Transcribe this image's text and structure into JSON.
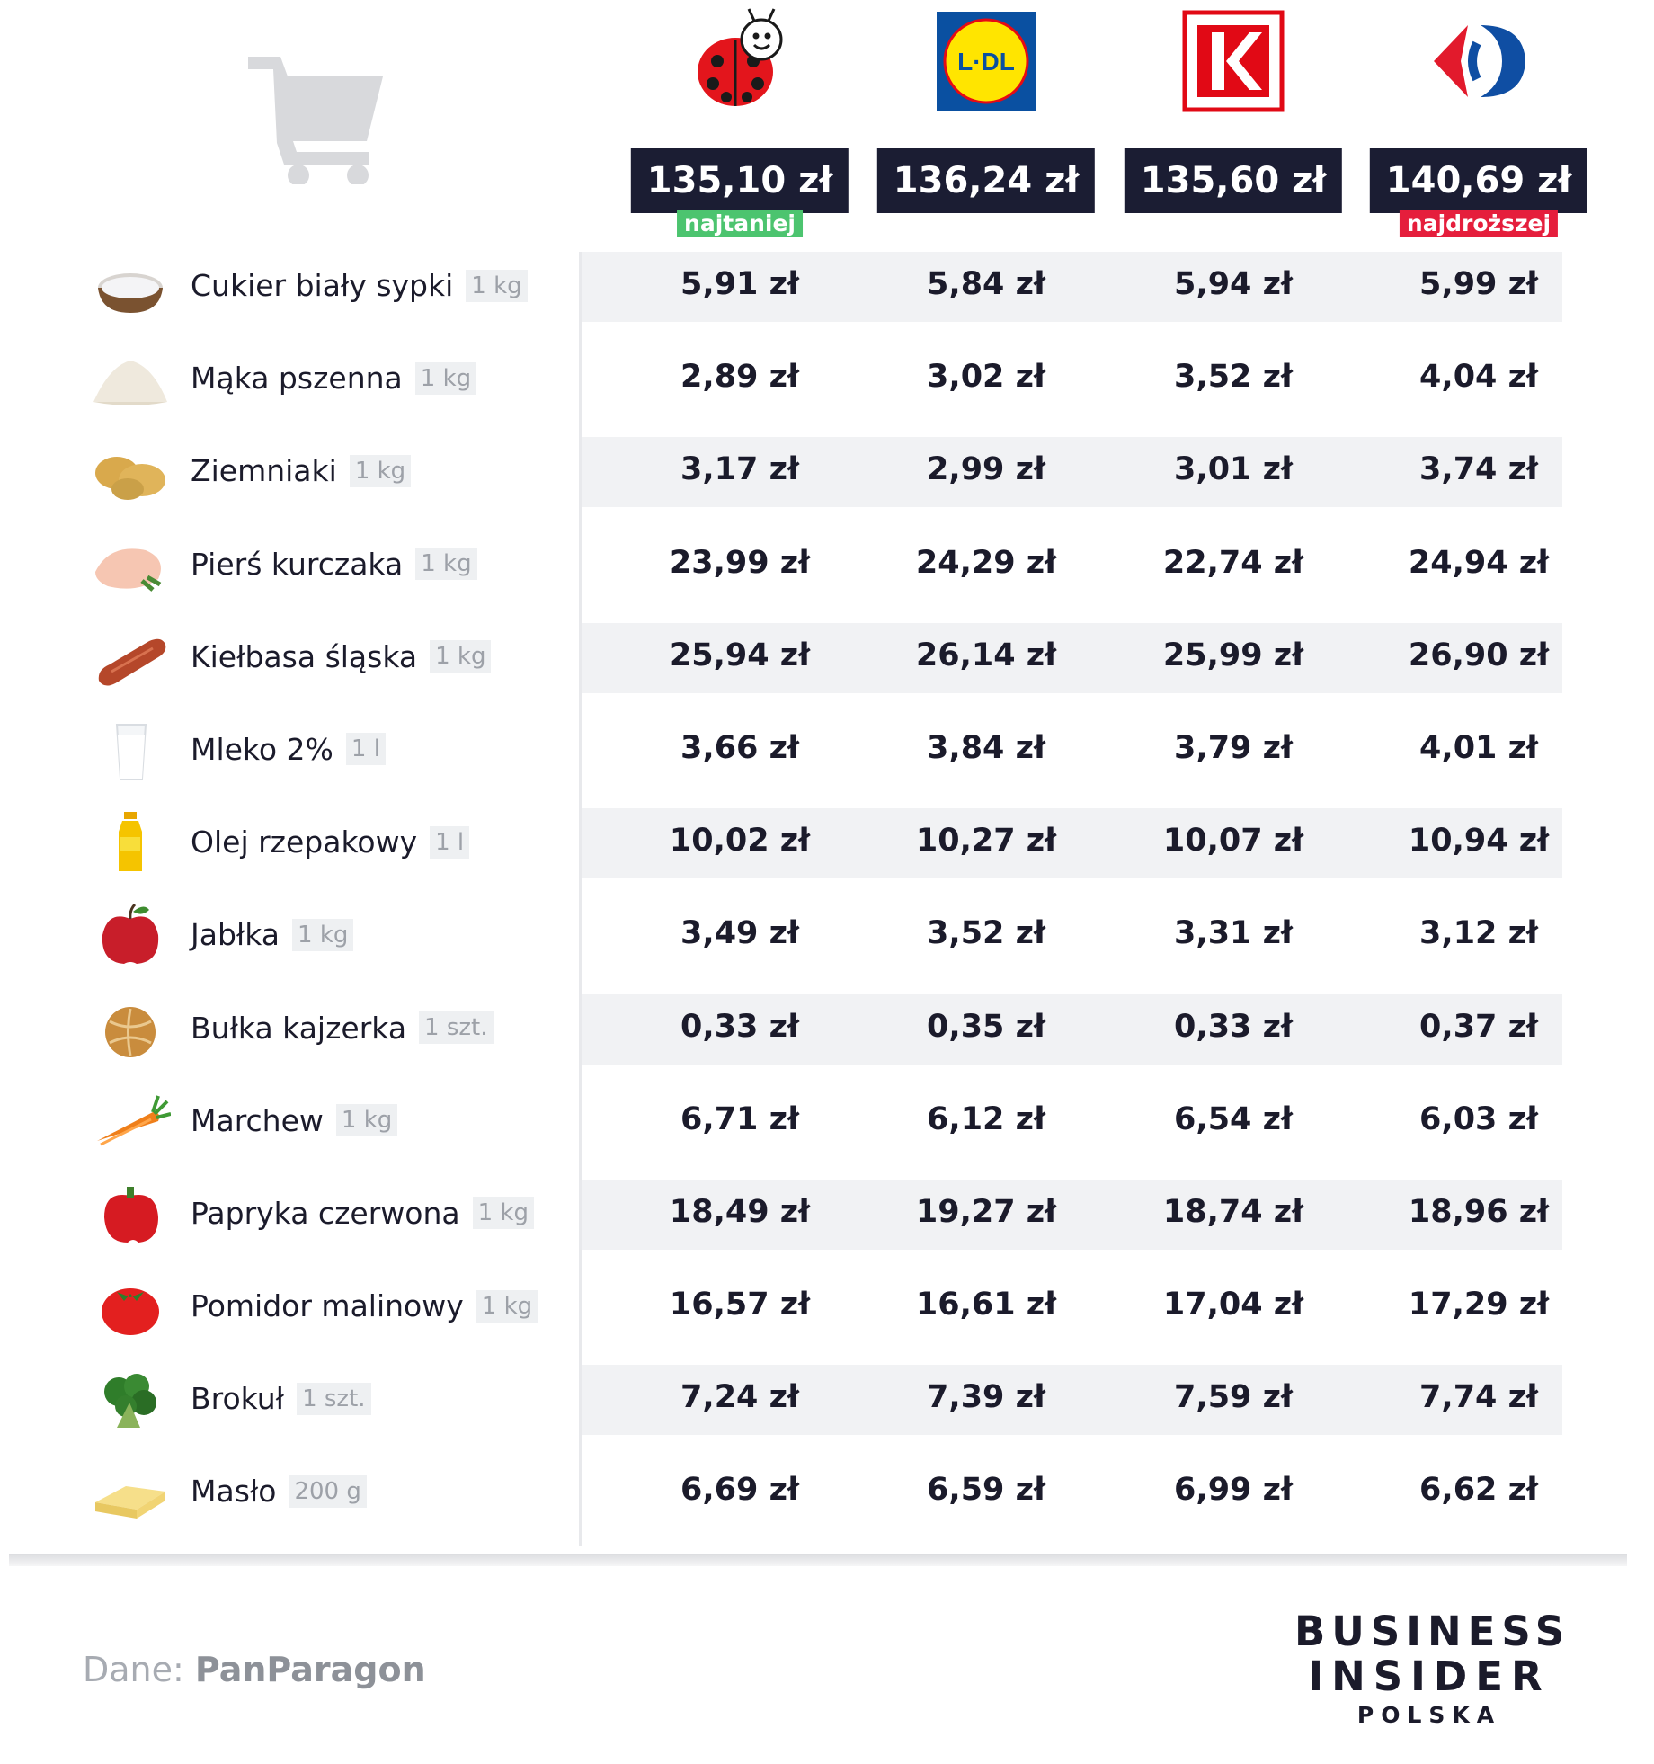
{
  "stores": [
    {
      "id": "biedronka",
      "logo": "ladybug-logo",
      "total": "135,10 zł",
      "tag": "najtaniej"
    },
    {
      "id": "lidl",
      "logo": "lidl-logo",
      "logo_text": "LIDL",
      "total": "136,24 zł",
      "tag": ""
    },
    {
      "id": "kaufland",
      "logo": "kaufland-logo",
      "total": "135,60 zł",
      "tag": ""
    },
    {
      "id": "carrefour",
      "logo": "carrefour-logo",
      "total": "140,69 zł",
      "tag": "najdroższej"
    }
  ],
  "products": [
    {
      "name": "Cukier biały sypki",
      "unit": "1 kg",
      "icon": "sugar-bowl-icon",
      "prices": [
        "5,91 zł",
        "5,84 zł",
        "5,94 zł",
        "5,99 zł"
      ]
    },
    {
      "name": "Mąka pszenna",
      "unit": "1 kg",
      "icon": "flour-icon",
      "prices": [
        "2,89 zł",
        "3,02 zł",
        "3,52 zł",
        "4,04 zł"
      ]
    },
    {
      "name": "Ziemniaki",
      "unit": "1 kg",
      "icon": "potatoes-icon",
      "prices": [
        "3,17 zł",
        "2,99 zł",
        "3,01 zł",
        "3,74 zł"
      ]
    },
    {
      "name": "Pierś kurczaka",
      "unit": "1 kg",
      "icon": "chicken-breast-icon",
      "prices": [
        "23,99 zł",
        "24,29 zł",
        "22,74 zł",
        "24,94 zł"
      ]
    },
    {
      "name": "Kiełbasa śląska",
      "unit": "1 kg",
      "icon": "sausage-icon",
      "prices": [
        "25,94 zł",
        "26,14 zł",
        "25,99 zł",
        "26,90 zł"
      ]
    },
    {
      "name": "Mleko 2%",
      "unit": "1 l",
      "icon": "milk-glass-icon",
      "prices": [
        "3,66 zł",
        "3,84 zł",
        "3,79 zł",
        "4,01 zł"
      ]
    },
    {
      "name": "Olej rzepakowy",
      "unit": "1 l",
      "icon": "oil-bottle-icon",
      "prices": [
        "10,02 zł",
        "10,27 zł",
        "10,07 zł",
        "10,94 zł"
      ]
    },
    {
      "name": "Jabłka",
      "unit": "1 kg",
      "icon": "apple-icon",
      "prices": [
        "3,49 zł",
        "3,52 zł",
        "3,31 zł",
        "3,12 zł"
      ]
    },
    {
      "name": "Bułka kajzerka",
      "unit": "1 szt.",
      "icon": "bread-roll-icon",
      "prices": [
        "0,33 zł",
        "0,35 zł",
        "0,33 zł",
        "0,37 zł"
      ]
    },
    {
      "name": "Marchew",
      "unit": "1 kg",
      "icon": "carrot-icon",
      "prices": [
        "6,71 zł",
        "6,12 zł",
        "6,54 zł",
        "6,03 zł"
      ]
    },
    {
      "name": "Papryka czerwona",
      "unit": "1 kg",
      "icon": "red-pepper-icon",
      "prices": [
        "18,49 zł",
        "19,27 zł",
        "18,74 zł",
        "18,96 zł"
      ]
    },
    {
      "name": "Pomidor malinowy",
      "unit": "1 kg",
      "icon": "tomato-icon",
      "prices": [
        "16,57 zł",
        "16,61 zł",
        "17,04 zł",
        "17,29 zł"
      ]
    },
    {
      "name": "Brokuł",
      "unit": "1 szt.",
      "icon": "broccoli-icon",
      "prices": [
        "7,24 zł",
        "7,39 zł",
        "7,59 zł",
        "7,74 zł"
      ]
    },
    {
      "name": "Masło",
      "unit": "200 g",
      "icon": "butter-icon",
      "prices": [
        "6,69 zł",
        "6,59 zł",
        "6,99 zł",
        "6,62 zł"
      ]
    }
  ],
  "footer": {
    "source_label": "Dane:",
    "source_name": "PanParagon",
    "brand_line1": "BUSINESS",
    "brand_line2": "INSIDER",
    "brand_line3": "POLSKA"
  },
  "colors": {
    "dark_navy": "#1b1d33",
    "cheapest_green": "#4cc46f",
    "most_expensive_red": "#e51e3c",
    "row_shade": "#f1f2f4"
  }
}
